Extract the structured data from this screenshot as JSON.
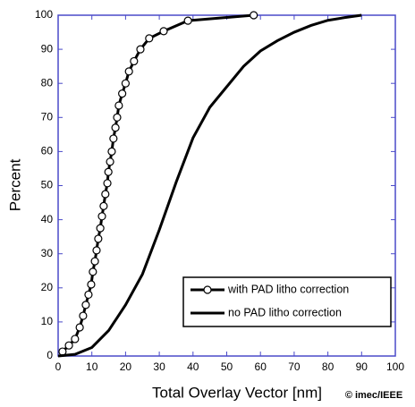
{
  "chart_data": {
    "type": "line",
    "x_label": "Total Overlay Vector [nm]",
    "y_label": "Percent",
    "annotation": "© imec/IEEE",
    "xlim": [
      0,
      100
    ],
    "xticks": [
      0,
      10,
      20,
      30,
      40,
      50,
      60,
      70,
      80,
      90,
      100
    ],
    "ylim": [
      0,
      100
    ],
    "yticks": [
      0,
      10,
      20,
      30,
      40,
      50,
      60,
      70,
      80,
      90,
      100
    ],
    "frame_color": "#4a4ac8",
    "legend": "lower right",
    "series": [
      {
        "name": "with PAD litho correction",
        "color": "#000000",
        "marker": "circle",
        "x": [
          1.3,
          3.2,
          5,
          6.4,
          7.4,
          8.2,
          9,
          9.8,
          10.3,
          10.9,
          11.4,
          11.9,
          12.5,
          13,
          13.5,
          14,
          14.6,
          14.9,
          15.4,
          15.9,
          16.4,
          17,
          17.5,
          18,
          19,
          20,
          21,
          22.5,
          24.4,
          27,
          31.3,
          38.5,
          58
        ],
        "values": [
          1.3,
          3.1,
          5,
          8.4,
          11.8,
          15,
          18,
          21,
          24.7,
          27.8,
          31,
          34.4,
          37.5,
          41,
          44,
          47.5,
          50.7,
          54,
          57,
          60,
          63.8,
          67,
          70,
          73.5,
          77,
          80,
          83.5,
          86.5,
          90,
          93.2,
          95.3,
          98.4,
          100
        ]
      },
      {
        "name": "no PAD litho correction",
        "color": "#000000",
        "marker": "none",
        "x": [
          0,
          5,
          10,
          15,
          20,
          25,
          30,
          35,
          40,
          45,
          50,
          55,
          60,
          65,
          70,
          75,
          80,
          85,
          90
        ],
        "values": [
          0,
          0.5,
          2.5,
          7.5,
          15,
          24,
          37,
          51,
          64,
          73,
          79,
          85,
          89.5,
          92.5,
          95,
          97,
          98.5,
          99.3,
          100
        ]
      }
    ]
  }
}
